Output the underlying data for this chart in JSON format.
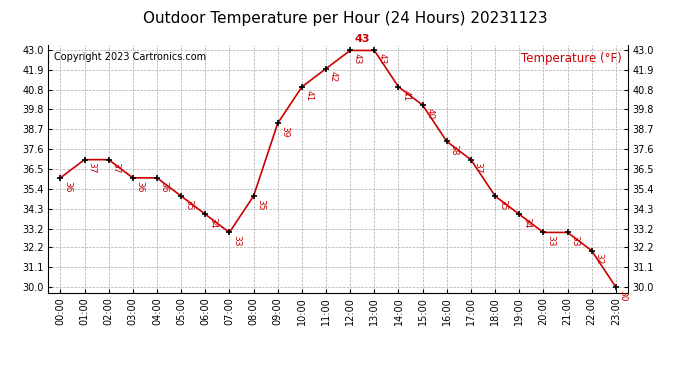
{
  "title": "Outdoor Temperature per Hour (24 Hours) 20231123",
  "copyright": "Copyright 2023 Cartronics.com",
  "legend_label": "Temperature (°F)",
  "hours": [
    "00:00",
    "01:00",
    "02:00",
    "03:00",
    "04:00",
    "05:00",
    "06:00",
    "07:00",
    "08:00",
    "09:00",
    "10:00",
    "11:00",
    "12:00",
    "13:00",
    "14:00",
    "15:00",
    "16:00",
    "17:00",
    "18:00",
    "19:00",
    "20:00",
    "21:00",
    "22:00",
    "23:00"
  ],
  "temps": [
    36,
    37,
    37,
    36,
    36,
    35,
    34,
    33,
    35,
    39,
    41,
    42,
    43,
    43,
    41,
    40,
    38,
    37,
    35,
    34,
    33,
    33,
    32,
    30
  ],
  "line_color": "#cc0000",
  "marker_color": "#000000",
  "label_color": "#cc0000",
  "title_color": "#000000",
  "copyright_color": "#000000",
  "legend_color": "#cc0000",
  "bg_color": "#ffffff",
  "grid_color": "#aaaaaa",
  "ylim_min": 29.7,
  "ylim_max": 43.3,
  "yticks": [
    30.0,
    31.1,
    32.2,
    33.2,
    34.3,
    35.4,
    36.5,
    37.6,
    38.7,
    39.8,
    40.8,
    41.9,
    43.0
  ],
  "title_fontsize": 11,
  "copyright_fontsize": 7,
  "legend_fontsize": 8.5,
  "label_fontsize": 6.5,
  "tick_fontsize": 7
}
